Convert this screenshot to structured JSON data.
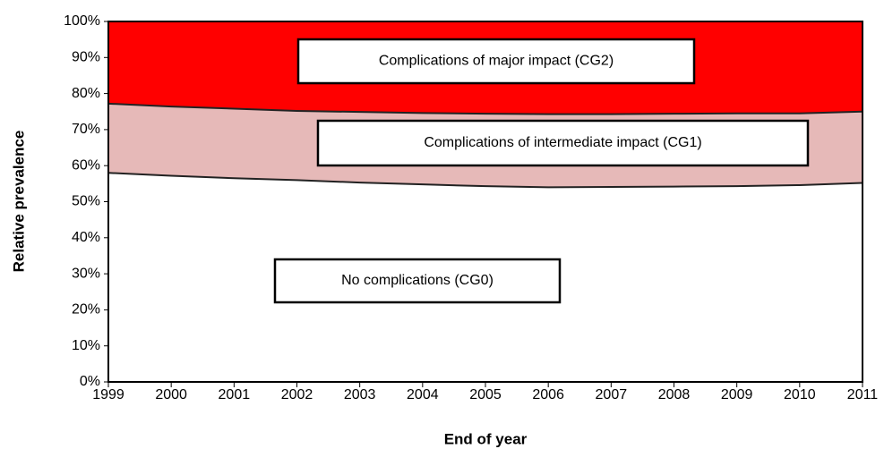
{
  "chart_data": {
    "type": "stacked_area",
    "x": [
      1999,
      2000,
      2001,
      2002,
      2003,
      2004,
      2005,
      2006,
      2007,
      2008,
      2009,
      2010,
      2011
    ],
    "xlim": [
      1999,
      2011
    ],
    "xticks": [
      1999,
      2000,
      2001,
      2002,
      2003,
      2004,
      2005,
      2006,
      2007,
      2008,
      2009,
      2010,
      2011
    ],
    "x_label": "End of year",
    "y_label": "Relative prevalence",
    "ylim": [
      0,
      100
    ],
    "yticks": [
      {
        "value": 0,
        "label": "0%"
      },
      {
        "value": 10,
        "label": "10%"
      },
      {
        "value": 20,
        "label": "20%"
      },
      {
        "value": 30,
        "label": "30%"
      },
      {
        "value": 40,
        "label": "40%"
      },
      {
        "value": 50,
        "label": "50%"
      },
      {
        "value": 60,
        "label": "60%"
      },
      {
        "value": 70,
        "label": "70%"
      },
      {
        "value": 80,
        "label": "80%"
      },
      {
        "value": 90,
        "label": "90%"
      },
      {
        "value": 100,
        "label": "100%"
      }
    ],
    "series": [
      {
        "name": "No complications (CG0)",
        "color": "#ffffff",
        "values": [
          58,
          57.2,
          56.5,
          56,
          55.3,
          54.8,
          54.3,
          54,
          54.1,
          54.2,
          54.3,
          54.6,
          55.2
        ]
      },
      {
        "name": "Complications of intermediate impact (CG1)",
        "color": "#e6b9b8",
        "values": [
          19.2,
          19.2,
          19.3,
          19.2,
          19.6,
          19.8,
          20.1,
          20.3,
          20.2,
          20.2,
          20.2,
          19.9,
          19.8
        ]
      },
      {
        "name": "Complications of major impact (CG2)",
        "color": "#ff0000",
        "values": [
          22.8,
          23.6,
          24.2,
          24.8,
          25.1,
          25.4,
          25.6,
          25.7,
          25.7,
          25.6,
          25.5,
          25.5,
          25
        ]
      }
    ]
  }
}
